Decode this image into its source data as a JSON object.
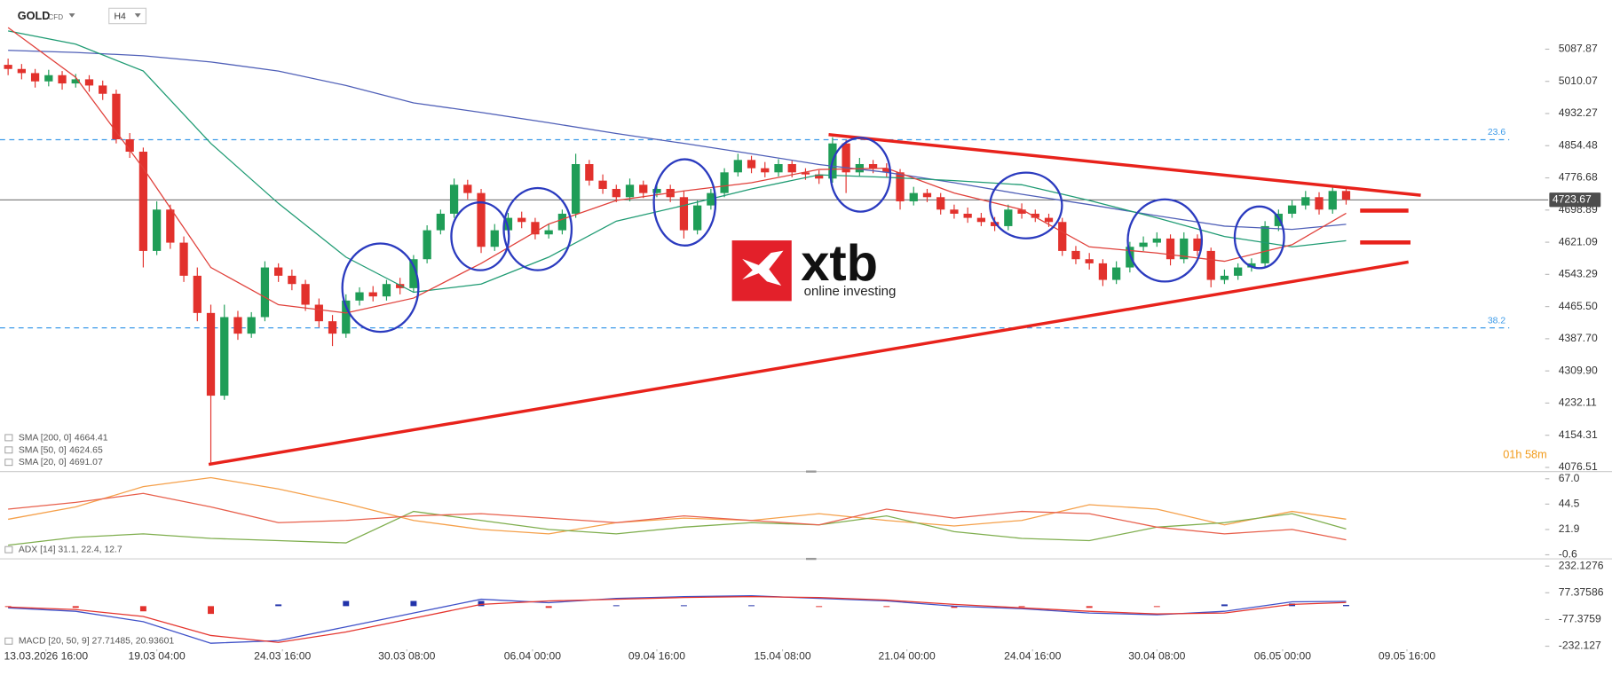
{
  "header": {
    "symbol": "GOLD",
    "instrument": "CFD",
    "timeframe": "H4"
  },
  "logo": {
    "brand": "xtb",
    "tagline": "online investing"
  },
  "chart_data": [
    {
      "type": "candlestick",
      "xlim": [
        -0.6,
        113.5
      ],
      "xticks": [
        {
          "value": 2.8,
          "label": "13.03.2026 16:00"
        },
        {
          "value": 11.0,
          "label": "19.03 04:00"
        },
        {
          "value": 20.3,
          "label": "24.03 16:00"
        },
        {
          "value": 29.5,
          "label": "30.03 08:00"
        },
        {
          "value": 38.8,
          "label": "06.04 00:00"
        },
        {
          "value": 48.0,
          "label": "09.04 16:00"
        },
        {
          "value": 57.3,
          "label": "15.04 08:00"
        },
        {
          "value": 66.5,
          "label": "21.04 00:00"
        },
        {
          "value": 75.8,
          "label": "24.04 16:00"
        },
        {
          "value": 85.0,
          "label": "30.04 08:00"
        },
        {
          "value": 94.3,
          "label": "06.05 00:00"
        },
        {
          "value": 103.5,
          "label": "09.05 16:00"
        }
      ],
      "ylim": [
        4069,
        5157
      ],
      "yticks": [
        5087.87,
        5010.07,
        4932.27,
        4854.48,
        4776.68,
        4698.89,
        4621.09,
        4543.29,
        {
          "value": 4465.5,
          "label": "4465.50"
        },
        {
          "value": 4387.7,
          "label": "4387.70"
        },
        {
          "value": 4309.9,
          "label": "4309.90"
        },
        4232.11,
        4154.31,
        4076.51
      ],
      "grid": false,
      "up_color": "#1f9d57",
      "down_color": "#e2312c",
      "open": [
        5050,
        5040,
        5030,
        5010,
        5025,
        5005,
        5015,
        5000,
        4980,
        4870,
        4840,
        4600,
        4700,
        4620,
        4540,
        4450,
        4250,
        4440,
        4400,
        4440,
        4560,
        4540,
        4520,
        4470,
        4430,
        4400,
        4480,
        4500,
        4490,
        4520,
        4510,
        4580,
        4650,
        4690,
        4760,
        4740,
        4610,
        4650,
        4680,
        4670,
        4640,
        4650,
        4690,
        4810,
        4770,
        4750,
        4730,
        4760,
        4740,
        4750,
        4730,
        4650,
        4710,
        4740,
        4790,
        4820,
        4800,
        4790,
        4810,
        4790,
        4785,
        4775,
        4860,
        4790,
        4810,
        4800,
        4790,
        4720,
        4740,
        4730,
        4700,
        4690,
        4680,
        4670,
        4660,
        4700,
        4690,
        4680,
        4670,
        4600,
        4580,
        4570,
        4530,
        4560,
        4610,
        4620,
        4630,
        4580,
        4630,
        4600,
        4530,
        4540,
        4560,
        4570,
        4660,
        4690,
        4710,
        4730,
        4700,
        4745
      ],
      "high": [
        5065,
        5052,
        5040,
        5038,
        5035,
        5028,
        5025,
        5012,
        4990,
        4885,
        4850,
        4720,
        4712,
        4635,
        4560,
        4470,
        4470,
        4455,
        4452,
        4575,
        4570,
        4555,
        4530,
        4485,
        4445,
        4495,
        4512,
        4515,
        4530,
        4535,
        4590,
        4662,
        4700,
        4775,
        4772,
        4750,
        4665,
        4692,
        4695,
        4680,
        4665,
        4700,
        4835,
        4820,
        4785,
        4760,
        4775,
        4770,
        4765,
        4760,
        4745,
        4722,
        4750,
        4800,
        4835,
        4830,
        4815,
        4822,
        4818,
        4800,
        4795,
        4875,
        4868,
        4825,
        4820,
        4812,
        4798,
        4755,
        4750,
        4740,
        4712,
        4705,
        4692,
        4682,
        4712,
        4715,
        4700,
        4690,
        4680,
        4612,
        4595,
        4580,
        4575,
        4622,
        4635,
        4645,
        4640,
        4645,
        4640,
        4608,
        4555,
        4570,
        4582,
        4672,
        4700,
        4722,
        4745,
        4742,
        4758,
        4752
      ],
      "low": [
        5025,
        5015,
        4995,
        4998,
        4990,
        4995,
        4985,
        4965,
        4860,
        4825,
        4560,
        4590,
        4605,
        4525,
        4430,
        4088,
        4240,
        4385,
        4390,
        4430,
        4525,
        4505,
        4455,
        4415,
        4370,
        4390,
        4468,
        4478,
        4480,
        4495,
        4500,
        4570,
        4640,
        4680,
        4725,
        4595,
        4600,
        4640,
        4655,
        4628,
        4630,
        4640,
        4680,
        4758,
        4738,
        4718,
        4720,
        4728,
        4730,
        4718,
        4630,
        4640,
        4700,
        4730,
        4780,
        4788,
        4778,
        4780,
        4778,
        4772,
        4762,
        4765,
        4740,
        4780,
        4788,
        4778,
        4700,
        4710,
        4718,
        4688,
        4678,
        4668,
        4660,
        4648,
        4650,
        4678,
        4670,
        4658,
        4588,
        4568,
        4555,
        4515,
        4520,
        4548,
        4600,
        4610,
        4565,
        4570,
        4588,
        4512,
        4520,
        4530,
        4550,
        4560,
        4648,
        4680,
        4700,
        4688,
        4690,
        4712
      ],
      "close": [
        5040,
        5030,
        5010,
        5025,
        5005,
        5015,
        5000,
        4980,
        4870,
        4840,
        4600,
        4700,
        4620,
        4540,
        4450,
        4250,
        4440,
        4400,
        4440,
        4560,
        4540,
        4520,
        4470,
        4430,
        4400,
        4480,
        4500,
        4490,
        4520,
        4510,
        4580,
        4650,
        4690,
        4760,
        4740,
        4610,
        4650,
        4680,
        4670,
        4640,
        4650,
        4690,
        4810,
        4770,
        4750,
        4730,
        4760,
        4740,
        4750,
        4730,
        4650,
        4710,
        4740,
        4790,
        4820,
        4800,
        4790,
        4810,
        4790,
        4785,
        4775,
        4860,
        4790,
        4810,
        4800,
        4790,
        4720,
        4740,
        4730,
        4700,
        4690,
        4680,
        4670,
        4660,
        4700,
        4690,
        4680,
        4670,
        4600,
        4580,
        4570,
        4530,
        4560,
        4610,
        4620,
        4630,
        4580,
        4630,
        4600,
        4530,
        4540,
        4560,
        4570,
        4660,
        4690,
        4710,
        4730,
        4700,
        4745,
        4723.67
      ],
      "series": [
        {
          "name": "SMA [200, 0]",
          "color": "#5060b8",
          "x": [
            0,
            5,
            10,
            15,
            20,
            25,
            30,
            35,
            40,
            45,
            50,
            55,
            60,
            65,
            70,
            75,
            80,
            85,
            90,
            95,
            99
          ],
          "values": [
            5085,
            5080,
            5072,
            5057,
            5035,
            5000,
            4958,
            4935,
            4910,
            4884,
            4860,
            4835,
            4809,
            4790,
            4765,
            4737,
            4712,
            4685,
            4660,
            4652,
            4664.41
          ]
        },
        {
          "name": "SMA [50, 0]",
          "color": "#1f9b73",
          "x": [
            0,
            5,
            10,
            15,
            20,
            25,
            30,
            35,
            40,
            45,
            50,
            55,
            60,
            65,
            70,
            75,
            80,
            85,
            90,
            95,
            99
          ],
          "values": [
            5132,
            5100,
            5035,
            4860,
            4715,
            4585,
            4500,
            4520,
            4585,
            4672,
            4710,
            4750,
            4784,
            4778,
            4770,
            4760,
            4722,
            4680,
            4635,
            4610,
            4624.65
          ]
        },
        {
          "name": "SMA [20, 0]",
          "color": "#e0403a",
          "x": [
            0,
            5,
            10,
            15,
            20,
            25,
            30,
            35,
            40,
            45,
            50,
            55,
            60,
            65,
            70,
            75,
            80,
            85,
            90,
            95,
            99
          ],
          "values": [
            5140,
            5020,
            4800,
            4560,
            4470,
            4450,
            4486,
            4570,
            4665,
            4722,
            4745,
            4765,
            4797,
            4800,
            4740,
            4700,
            4610,
            4595,
            4575,
            4615,
            4691.07
          ]
        }
      ],
      "last_price": 4723.67,
      "levels": [
        {
          "label": "23.6",
          "value": 4869,
          "color": "#3d9be9"
        },
        {
          "label": "38.2",
          "value": 4414,
          "color": "#3d9be9"
        }
      ],
      "timer": "01h 58m"
    },
    {
      "type": "line",
      "label": "ADX [14] 31.1, 22.4, 12.7",
      "xlim": [
        -0.6,
        113.5
      ],
      "ylim": [
        -3.3,
        71.6
      ],
      "yticks": [
        {
          "value": 67,
          "label": "67.0"
        },
        44.5,
        21.9,
        -0.6
      ],
      "series": [
        {
          "color": "#f5a04a",
          "x": [
            0,
            5,
            10,
            15,
            20,
            25,
            30,
            35,
            40,
            45,
            50,
            55,
            60,
            65,
            70,
            75,
            80,
            85,
            90,
            95,
            99
          ],
          "values": [
            31,
            42,
            60,
            68,
            58,
            45,
            30,
            22,
            18,
            28,
            32,
            30,
            36,
            30,
            25,
            30,
            44,
            40,
            26,
            38,
            31.1
          ]
        },
        {
          "color": "#7fae4e",
          "x": [
            0,
            5,
            10,
            15,
            20,
            25,
            30,
            35,
            40,
            45,
            50,
            55,
            60,
            65,
            70,
            75,
            80,
            85,
            90,
            95,
            99
          ],
          "values": [
            8,
            15,
            18,
            14,
            12,
            10,
            38,
            30,
            22,
            18,
            24,
            28,
            26,
            34,
            20,
            14,
            12,
            24,
            28,
            36,
            22.4
          ]
        },
        {
          "color": "#e8604c",
          "x": [
            0,
            5,
            10,
            15,
            20,
            25,
            30,
            35,
            40,
            45,
            50,
            55,
            60,
            65,
            70,
            75,
            80,
            85,
            90,
            95,
            99
          ],
          "values": [
            40,
            46,
            54,
            42,
            28,
            30,
            34,
            36,
            32,
            28,
            34,
            30,
            26,
            40,
            32,
            38,
            36,
            24,
            18,
            22,
            12.7
          ]
        }
      ]
    },
    {
      "type": "line",
      "label": "MACD [20, 50, 9] 27.71485, 20.93601",
      "xlim": [
        -0.6,
        113.5
      ],
      "ylim": [
        -250,
        256
      ],
      "yticks": [
        232.1276,
        77.37586,
        -77.3759,
        -232.127
      ],
      "series": [
        {
          "type": "bar",
          "color": "#2233aa",
          "negative_color": "#e2312c",
          "x": [
            0,
            5,
            10,
            15,
            20,
            25,
            30,
            35,
            40,
            45,
            50,
            55,
            60,
            65,
            70,
            75,
            80,
            85,
            90,
            95,
            99
          ],
          "values": [
            -5,
            -10,
            -30,
            -45,
            10,
            30,
            30,
            30,
            -10,
            5,
            5,
            5,
            -5,
            -5,
            -10,
            -5,
            -10,
            -5,
            10,
            15,
            6.78
          ]
        },
        {
          "color": "#3f51c8",
          "x": [
            0,
            5,
            10,
            15,
            20,
            25,
            30,
            35,
            40,
            45,
            50,
            55,
            60,
            65,
            70,
            75,
            80,
            85,
            90,
            95,
            99
          ],
          "values": [
            -10,
            -30,
            -90,
            -215,
            -200,
            -120,
            -40,
            40,
            20,
            45,
            55,
            60,
            45,
            30,
            0,
            -15,
            -40,
            -50,
            -30,
            25,
            27.71485
          ]
        },
        {
          "color": "#e5352e",
          "x": [
            0,
            5,
            10,
            15,
            20,
            25,
            30,
            35,
            40,
            45,
            50,
            55,
            60,
            65,
            70,
            75,
            80,
            85,
            90,
            95,
            99
          ],
          "values": [
            -5,
            -20,
            -60,
            -170,
            -210,
            -150,
            -70,
            10,
            30,
            40,
            50,
            55,
            50,
            35,
            10,
            -10,
            -30,
            -45,
            -40,
            10,
            20.93601
          ]
        }
      ]
    }
  ]
}
